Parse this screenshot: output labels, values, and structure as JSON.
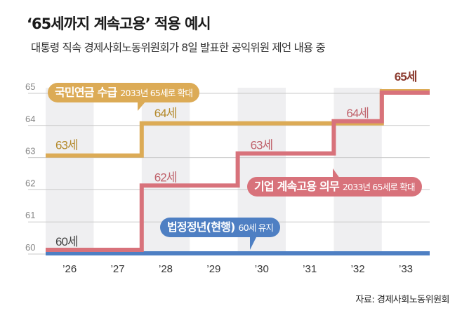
{
  "title": "‘65세까지 계속고용’ 적용 예시",
  "subtitle": "대통령 직속 경제사회노동위원회가 8일 발표한 공익위원 제언 내용 중",
  "source": "자료: 경제사회노동위원회",
  "colors": {
    "pension": "#dcab56",
    "employment": "#d8727b",
    "legal": "#4e7fc3",
    "band": "#efeff1"
  },
  "chart_data": {
    "type": "line",
    "step": true,
    "categories": [
      "’26",
      "’27",
      "’28",
      "’29",
      "’30",
      "’31",
      "’32",
      "’33"
    ],
    "ylim": [
      60,
      65
    ],
    "yticks": [
      "60",
      "61",
      "62",
      "63",
      "64",
      "65"
    ],
    "grid": true,
    "series": [
      {
        "name": "국민연금 수급",
        "note": "2033년 65세로 확대",
        "values": [
          63,
          63,
          64,
          64,
          64,
          64,
          64,
          65
        ],
        "point_labels": [
          "63세",
          "",
          "64세",
          "",
          "",
          "",
          "",
          ""
        ]
      },
      {
        "name": "기업 계속고용 의무",
        "note": "2033년 65세로 확대",
        "values": [
          60,
          60,
          62,
          62,
          63,
          63,
          64,
          65
        ],
        "point_labels": [
          "",
          "",
          "62세",
          "",
          "63세",
          "",
          "64세",
          "65세"
        ]
      },
      {
        "name": "법정정년(현행)",
        "note": "60세 유지",
        "values": [
          60,
          60,
          60,
          60,
          60,
          60,
          60,
          60
        ],
        "point_labels": [
          "60세",
          "",
          "",
          "",
          "",
          "",
          "",
          ""
        ]
      }
    ]
  }
}
